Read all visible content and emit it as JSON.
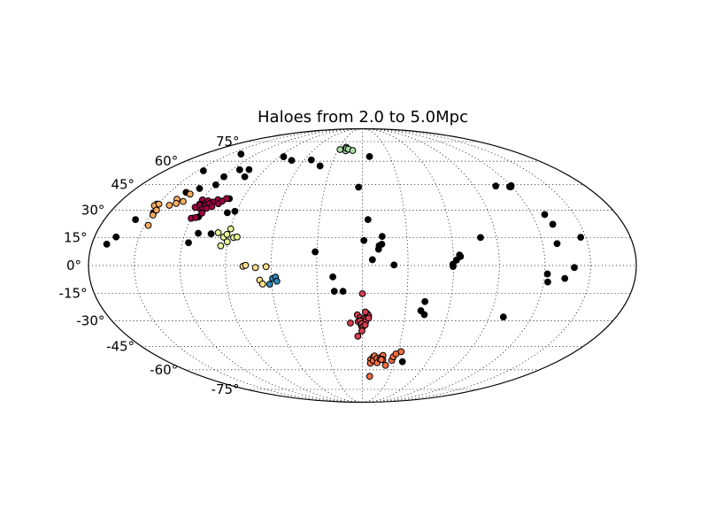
{
  "chart_data": {
    "type": "scatter",
    "title": "Haloes from 2.0 to 5.0Mpc",
    "projection": "mollweide",
    "grid": true,
    "lat_ticks": [
      "75°",
      "60°",
      "45°",
      "30°",
      "15°",
      "0°",
      "-15°",
      "-30°",
      "-45°",
      "-60°",
      "-75°"
    ],
    "lat_values": [
      75,
      60,
      45,
      30,
      15,
      0,
      -15,
      -30,
      -45,
      -60,
      -75
    ],
    "lon_gridlines": [
      -150,
      -120,
      -90,
      -60,
      -30,
      0,
      30,
      60,
      90,
      120,
      150
    ],
    "series": [
      {
        "color": "#000000",
        "points": [
          [
            -170.1,
            11.4
          ],
          [
            -165.5,
            15.3
          ],
          [
            -158.3,
            24.8
          ],
          [
            -148.9,
            28.6
          ],
          [
            -144.8,
            53.6
          ],
          [
            -137.6,
            65.1
          ],
          [
            -137.1,
            40.3
          ],
          [
            -129.5,
            42.6
          ],
          [
            -119.6,
            49.8
          ],
          [
            -119.3,
            44.8
          ],
          [
            -113.0,
            54.3
          ],
          [
            -115.2,
            26.3
          ],
          [
            -115.9,
            12.2
          ],
          [
            -111.0,
            17.3
          ],
          [
            -102.2,
            17.0
          ],
          [
            -100.2,
            36.6
          ],
          [
            -96.2,
            28.6
          ],
          [
            -91.3,
            29.4
          ],
          [
            -104.5,
            54.4
          ],
          [
            -101.6,
            49.8
          ],
          [
            -85.5,
            63.2
          ],
          [
            -72.7,
            60.6
          ],
          [
            -52.8,
            60.9
          ],
          [
            -40.6,
            56.8
          ],
          [
            -31.2,
            7.3
          ],
          [
            -19.5,
            -6.1
          ],
          [
            -18.8,
            -13.8
          ],
          [
            -13.0,
            -13.8
          ],
          [
            -3.1,
            43.4
          ],
          [
            1.0,
            13.4
          ],
          [
            3.9,
            24.8
          ],
          [
            7.7,
            63.3
          ],
          [
            6.6,
            3.1
          ],
          [
            10.7,
            8.7
          ],
          [
            11.1,
            10.6
          ],
          [
            13.3,
            15.6
          ],
          [
            12.9,
            11.4
          ],
          [
            20.8,
            0.3
          ],
          [
            40.7,
            -24.4
          ],
          [
            43.6,
            -26.6
          ],
          [
            42.6,
            -19.4
          ],
          [
            37.0,
            -54.6
          ],
          [
            59.5,
            0.7
          ],
          [
            59.6,
            -0.5
          ],
          [
            61.9,
            2.9
          ],
          [
            64.0,
            5.6
          ],
          [
            64.6,
            4.8
          ],
          [
            79.3,
            15.0
          ],
          [
            100.0,
            -27.9
          ],
          [
            107.7,
            44.1
          ],
          [
            118.4,
            43.7
          ],
          [
            119.1,
            43.6
          ],
          [
            120.4,
            44.3
          ],
          [
            129.1,
            27.6
          ],
          [
            129.6,
            11.7
          ],
          [
            131.2,
            22.2
          ],
          [
            146.6,
            15.1
          ],
          [
            122.7,
            -8.8
          ],
          [
            121.8,
            -4.5
          ],
          [
            133.6,
            -6.9
          ],
          [
            139.3,
            -1.1
          ]
        ]
      },
      {
        "color": "#9e0142",
        "points": [
          [
            -118.5,
            31.3
          ],
          [
            -119.8,
            35.9
          ],
          [
            -119.7,
            33.5
          ],
          [
            -118.8,
            32.9
          ],
          [
            -116.0,
            33.4
          ],
          [
            -115.8,
            34.0
          ],
          [
            -115.4,
            31.0
          ],
          [
            -114.6,
            32.5
          ],
          [
            -115.1,
            35.4
          ],
          [
            -111.0,
            34.6
          ],
          [
            -108.3,
            36.0
          ],
          [
            -112.8,
            33.7
          ],
          [
            -114.1,
            28.4
          ],
          [
            -112.8,
            31.1
          ],
          [
            -109.6,
            32.1
          ],
          [
            -106.0,
            33.7
          ],
          [
            -104.4,
            35.2
          ],
          [
            -102.4,
            36.7
          ],
          [
            -119.9,
            25.5
          ],
          [
            -117.0,
            25.9
          ],
          [
            -121.5,
            31.7
          ]
        ]
      },
      {
        "color": "#d53e4f",
        "points": [
          [
            0.0,
            -15.1
          ],
          [
            -3.6,
            -26.7
          ],
          [
            -3.1,
            -30.5
          ],
          [
            -1.4,
            -28.2
          ],
          [
            -0.4,
            -29.5
          ],
          [
            1.2,
            -28.8
          ],
          [
            2.2,
            -29.4
          ],
          [
            2.4,
            -30.5
          ],
          [
            3.5,
            -26.1
          ],
          [
            4.4,
            -27.2
          ],
          [
            4.4,
            -28.5
          ],
          [
            2.1,
            -25.1
          ],
          [
            -1.6,
            -30.1
          ],
          [
            -0.8,
            -32.9
          ],
          [
            -0.5,
            -31.7
          ],
          [
            0.5,
            -33.3
          ],
          [
            2.0,
            -32.4
          ],
          [
            -0.4,
            -35.8
          ],
          [
            -8.7,
            -31.3
          ],
          [
            -3.5,
            -38.9
          ]
        ]
      },
      {
        "color": "#f46d43",
        "points": [
          [
            7.5,
            -53.2
          ],
          [
            7.5,
            -55.6
          ],
          [
            9.7,
            -51.4
          ],
          [
            9.9,
            -53.9
          ],
          [
            10.7,
            -50.9
          ],
          [
            13.0,
            -52.5
          ],
          [
            13.8,
            -55.3
          ],
          [
            15.9,
            -53.0
          ],
          [
            16.9,
            -51.5
          ],
          [
            18.0,
            -50.6
          ],
          [
            17.6,
            -53.0
          ],
          [
            18.5,
            -53.3
          ],
          [
            22.2,
            -57.0
          ],
          [
            26.7,
            -53.7
          ],
          [
            27.2,
            -51.4
          ],
          [
            28.9,
            -49.6
          ],
          [
            32.8,
            -48.2
          ],
          [
            8.1,
            -64.7
          ],
          [
            17.1,
            -53.2
          ]
        ]
      },
      {
        "color": "#fdae61",
        "points": [
          [
            -151.2,
            33.5
          ],
          [
            -152.0,
            32.6
          ],
          [
            -149.7,
            33.5
          ],
          [
            -148.0,
            30.1
          ],
          [
            -148.1,
            27.3
          ],
          [
            -147.2,
            21.6
          ],
          [
            -141.3,
            32.8
          ],
          [
            -139.3,
            36.3
          ],
          [
            -137.4,
            33.9
          ],
          [
            -133.3,
            35.0
          ],
          [
            -132.8,
            39.3
          ]
        ]
      },
      {
        "color": "#fee08b",
        "points": [
          [
            -78.5,
            -0.4
          ],
          [
            -76.8,
            0.1
          ],
          [
            -70.3,
            -1.1
          ],
          [
            -67.9,
            -7.8
          ],
          [
            -63.3,
            -0.6
          ],
          [
            -66.2,
            -9.9
          ]
        ]
      },
      {
        "color": "#e6f598",
        "points": [
          [
            -97.6,
            17.6
          ],
          [
            -93.2,
            15.2
          ],
          [
            -91.4,
            16.7
          ],
          [
            -89.8,
            19.7
          ],
          [
            -86.5,
            15.0
          ],
          [
            -84.2,
            15.3
          ],
          [
            -94.1,
            10.5
          ],
          [
            -90.2,
            12.7
          ]
        ]
      },
      {
        "color": "#abdda4",
        "points": [
          [
            -21.2,
            70.3
          ],
          [
            -20.2,
            67.6
          ],
          [
            -20.1,
            69.4
          ],
          [
            -27.7,
            68.5
          ],
          [
            -17.5,
            68.8
          ],
          [
            -11.8,
            67.8
          ]
        ]
      },
      {
        "color": "#3288bd",
        "points": [
          [
            -59.3,
            -6.9
          ],
          [
            -57.3,
            -6.2
          ],
          [
            -56.6,
            -8.4
          ],
          [
            -61.5,
            -10.0
          ]
        ]
      }
    ]
  }
}
